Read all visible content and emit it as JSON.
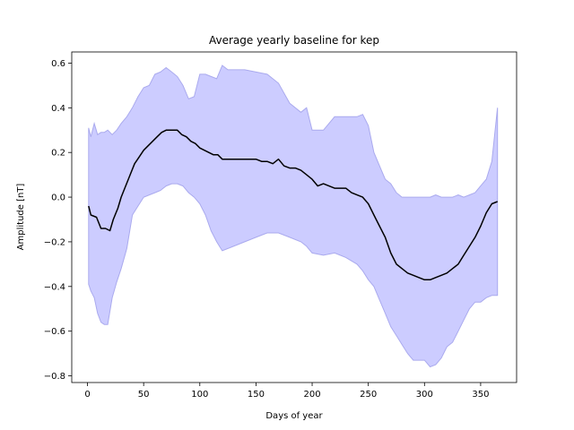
{
  "chart_data": {
    "type": "line",
    "title": "Average yearly baseline for kep",
    "xlabel": "Days of year",
    "ylabel": "Amplitude [nT]",
    "xlim": [
      -14,
      382
    ],
    "ylim": [
      -0.83,
      0.65
    ],
    "xticks": [
      0,
      50,
      100,
      150,
      200,
      250,
      300,
      350
    ],
    "yticks": [
      -0.8,
      -0.6,
      -0.4,
      -0.2,
      0.0,
      0.2,
      0.4,
      0.6
    ],
    "grid": false,
    "colors": {
      "mean_line": "#000000",
      "band_fill": "#ccccff",
      "band_edge": "#aaaaee"
    },
    "series": [
      {
        "x": [
          1,
          3,
          8,
          12,
          16,
          20,
          23,
          27,
          30,
          34,
          38,
          42,
          46,
          50,
          54,
          58,
          62,
          66,
          70,
          75,
          80,
          84,
          88,
          92,
          96,
          100,
          104,
          108,
          112,
          116,
          120,
          125,
          130,
          140,
          150,
          155,
          160,
          165,
          170,
          175,
          180,
          185,
          190,
          195,
          200,
          205,
          210,
          215,
          220,
          225,
          230,
          235,
          240,
          245,
          250,
          255,
          260,
          265,
          270,
          275,
          280,
          285,
          290,
          295,
          300,
          305,
          310,
          315,
          320,
          325,
          330,
          335,
          340,
          345,
          350,
          355,
          360,
          365
        ],
        "values": [
          -0.04,
          -0.08,
          -0.09,
          -0.14,
          -0.14,
          -0.15,
          -0.1,
          -0.05,
          0.0,
          0.05,
          0.1,
          0.15,
          0.18,
          0.21,
          0.23,
          0.25,
          0.27,
          0.29,
          0.3,
          0.3,
          0.3,
          0.28,
          0.27,
          0.25,
          0.24,
          0.22,
          0.21,
          0.2,
          0.19,
          0.19,
          0.17,
          0.17,
          0.17,
          0.17,
          0.17,
          0.16,
          0.16,
          0.15,
          0.17,
          0.14,
          0.13,
          0.13,
          0.12,
          0.1,
          0.08,
          0.05,
          0.06,
          0.05,
          0.04,
          0.04,
          0.04,
          0.02,
          0.01,
          0.0,
          -0.03,
          -0.08,
          -0.13,
          -0.18,
          -0.25,
          -0.3,
          -0.32,
          -0.34,
          -0.35,
          -0.36,
          -0.37,
          -0.37,
          -0.36,
          -0.35,
          -0.34,
          -0.32,
          -0.3,
          -0.26,
          -0.22,
          -0.18,
          -0.13,
          -0.07,
          -0.03,
          -0.02
        ]
      }
    ],
    "band": {
      "x": [
        1,
        3,
        6,
        9,
        12,
        15,
        18,
        22,
        26,
        30,
        35,
        40,
        45,
        50,
        55,
        60,
        65,
        70,
        75,
        80,
        85,
        90,
        95,
        100,
        105,
        110,
        115,
        120,
        125,
        130,
        140,
        150,
        160,
        170,
        180,
        190,
        195,
        200,
        210,
        220,
        230,
        240,
        245,
        250,
        255,
        260,
        265,
        270,
        275,
        280,
        285,
        290,
        295,
        300,
        305,
        310,
        315,
        320,
        325,
        330,
        335,
        340,
        345,
        350,
        355,
        360,
        365
      ],
      "upper": [
        0.31,
        0.27,
        0.33,
        0.28,
        0.29,
        0.29,
        0.3,
        0.28,
        0.3,
        0.33,
        0.36,
        0.4,
        0.45,
        0.49,
        0.5,
        0.55,
        0.56,
        0.58,
        0.56,
        0.54,
        0.5,
        0.44,
        0.45,
        0.55,
        0.55,
        0.54,
        0.53,
        0.59,
        0.57,
        0.57,
        0.57,
        0.56,
        0.55,
        0.51,
        0.42,
        0.38,
        0.4,
        0.3,
        0.3,
        0.36,
        0.36,
        0.36,
        0.37,
        0.32,
        0.2,
        0.14,
        0.08,
        0.06,
        0.02,
        0.0,
        0.0,
        0.0,
        0.0,
        0.0,
        0.0,
        0.01,
        0.0,
        0.0,
        0.0,
        0.01,
        0.0,
        0.01,
        0.02,
        0.05,
        0.08,
        0.16,
        0.4
      ],
      "lower": [
        -0.39,
        -0.42,
        -0.45,
        -0.52,
        -0.56,
        -0.57,
        -0.57,
        -0.45,
        -0.38,
        -0.32,
        -0.23,
        -0.08,
        -0.04,
        0.0,
        0.01,
        0.02,
        0.03,
        0.05,
        0.06,
        0.06,
        0.05,
        0.02,
        0.0,
        -0.03,
        -0.08,
        -0.15,
        -0.2,
        -0.24,
        -0.23,
        -0.22,
        -0.2,
        -0.18,
        -0.16,
        -0.16,
        -0.18,
        -0.2,
        -0.22,
        -0.25,
        -0.26,
        -0.25,
        -0.27,
        -0.3,
        -0.33,
        -0.37,
        -0.4,
        -0.46,
        -0.52,
        -0.58,
        -0.62,
        -0.66,
        -0.7,
        -0.73,
        -0.73,
        -0.73,
        -0.76,
        -0.75,
        -0.72,
        -0.67,
        -0.65,
        -0.6,
        -0.55,
        -0.5,
        -0.47,
        -0.47,
        -0.45,
        -0.44,
        -0.44
      ]
    }
  }
}
